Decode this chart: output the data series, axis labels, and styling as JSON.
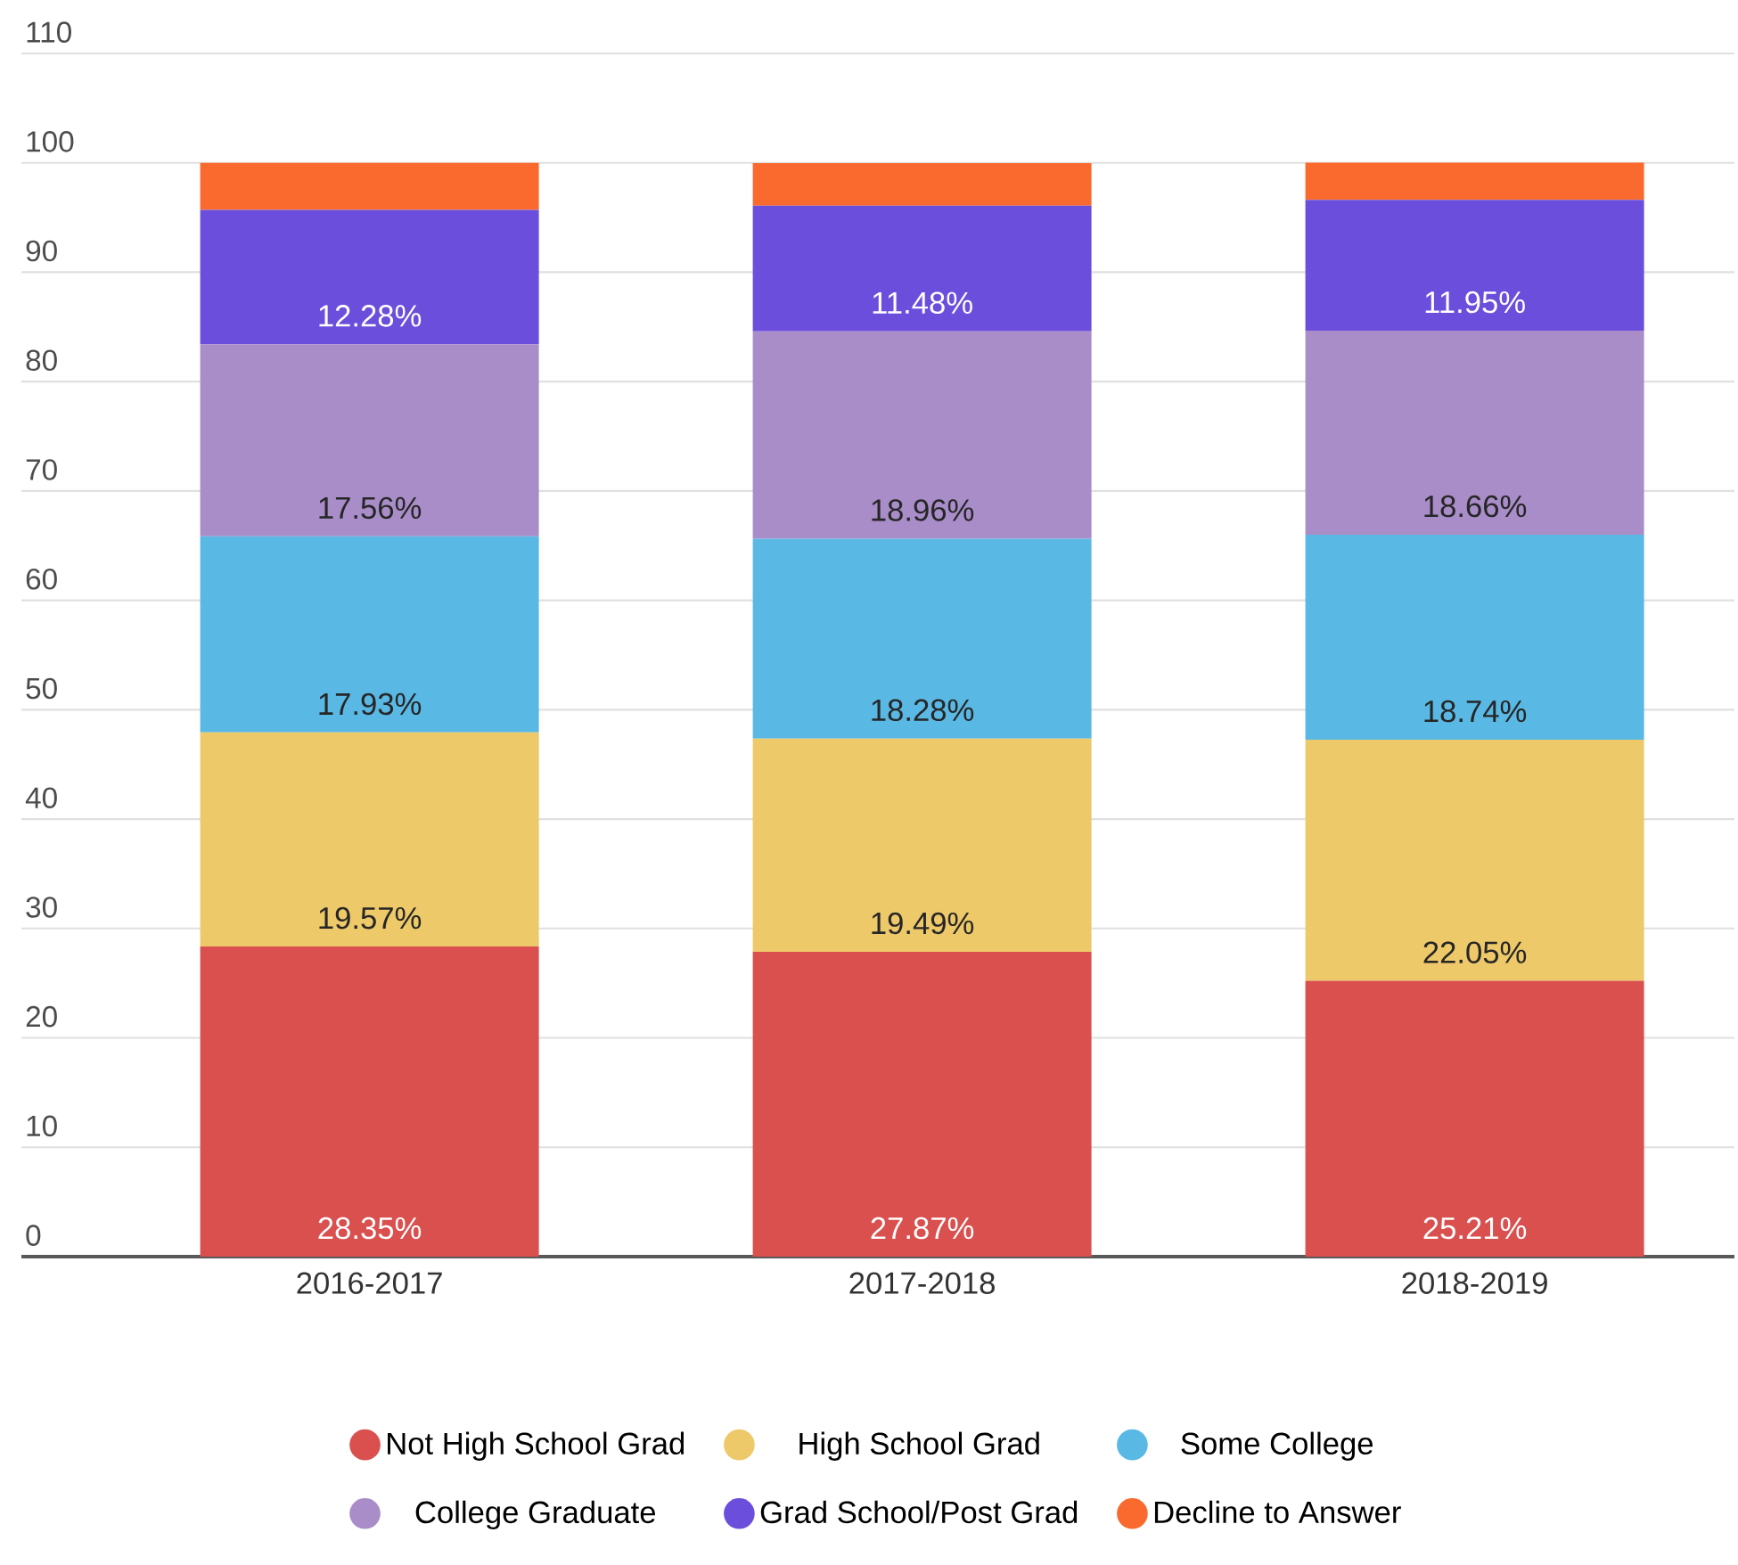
{
  "chart_data": {
    "type": "bar",
    "stacked": true,
    "categories": [
      "2016-2017",
      "2017-2018",
      "2018-2019"
    ],
    "series": [
      {
        "name": "Not High School Grad",
        "color": "#d9504f",
        "values": [
          28.35,
          27.87,
          25.21
        ],
        "value_labels": [
          "28.35%",
          "27.87%",
          "25.21%"
        ]
      },
      {
        "name": "High School Grad",
        "color": "#eec969",
        "values": [
          19.57,
          19.49,
          22.05
        ],
        "value_labels": [
          "19.57%",
          "19.49%",
          "22.05%"
        ]
      },
      {
        "name": "Some College",
        "color": "#5ab8e4",
        "values": [
          17.93,
          18.28,
          18.74
        ],
        "value_labels": [
          "17.93%",
          "18.28%",
          "18.74%"
        ]
      },
      {
        "name": "College Graduate",
        "color": "#a98dc9",
        "values": [
          17.56,
          18.96,
          18.66
        ],
        "value_labels": [
          "17.56%",
          "18.96%",
          "18.66%"
        ]
      },
      {
        "name": "Grad School/Post Grad",
        "color": "#6b4fdc",
        "values": [
          12.28,
          11.48,
          11.95
        ],
        "value_labels": [
          "12.28%",
          "11.48%",
          "11.95%"
        ]
      },
      {
        "name": "Decline to Answer",
        "color": "#fa6a2f",
        "values": [
          4.3,
          3.9,
          3.4
        ],
        "value_labels": [
          null,
          null,
          null
        ]
      }
    ],
    "ylim": [
      0,
      110
    ],
    "yticks": [
      0,
      10,
      20,
      30,
      40,
      50,
      60,
      70,
      80,
      90,
      100,
      110
    ],
    "grid": "y",
    "legend": "bottom"
  }
}
